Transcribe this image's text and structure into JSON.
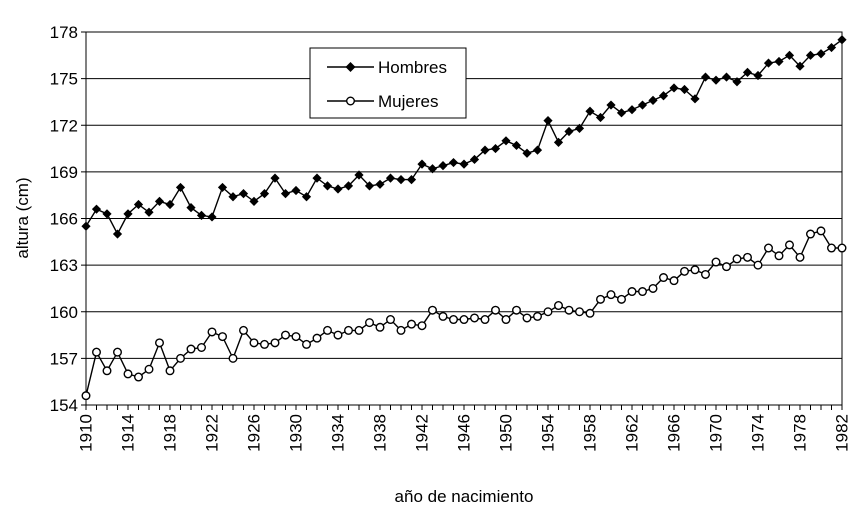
{
  "chart_data": {
    "type": "line",
    "xlabel": "año de nacimiento",
    "ylabel": "altura (cm)",
    "xlim": [
      1910,
      1982
    ],
    "ylim": [
      154,
      178
    ],
    "y_ticks": [
      154,
      157,
      160,
      163,
      166,
      169,
      172,
      175,
      178
    ],
    "x_ticks": [
      1910,
      1914,
      1918,
      1922,
      1926,
      1930,
      1934,
      1938,
      1942,
      1946,
      1950,
      1954,
      1958,
      1962,
      1966,
      1970,
      1974,
      1978,
      1982
    ],
    "grid": "horizontal",
    "legend_position": "top-left",
    "x": [
      1910,
      1911,
      1912,
      1913,
      1914,
      1915,
      1916,
      1917,
      1918,
      1919,
      1920,
      1921,
      1922,
      1923,
      1924,
      1925,
      1926,
      1927,
      1928,
      1929,
      1930,
      1931,
      1932,
      1933,
      1934,
      1935,
      1936,
      1937,
      1938,
      1939,
      1940,
      1941,
      1942,
      1943,
      1944,
      1945,
      1946,
      1947,
      1948,
      1949,
      1950,
      1951,
      1952,
      1953,
      1954,
      1955,
      1956,
      1957,
      1958,
      1959,
      1960,
      1961,
      1962,
      1963,
      1964,
      1965,
      1966,
      1967,
      1968,
      1969,
      1970,
      1971,
      1972,
      1973,
      1974,
      1975,
      1976,
      1977,
      1978,
      1979,
      1980,
      1981,
      1982
    ],
    "series": [
      {
        "name": "Hombres",
        "marker": "filled-diamond",
        "color": "#000000",
        "values": [
          165.5,
          166.6,
          166.3,
          165.0,
          166.3,
          166.9,
          166.4,
          167.1,
          166.9,
          168.0,
          166.7,
          166.2,
          166.1,
          168.0,
          167.4,
          167.6,
          167.1,
          167.6,
          168.6,
          167.6,
          167.8,
          167.4,
          168.6,
          168.1,
          167.9,
          168.1,
          168.8,
          168.1,
          168.2,
          168.6,
          168.5,
          168.5,
          169.5,
          169.2,
          169.4,
          169.6,
          169.5,
          169.8,
          170.4,
          170.5,
          171.0,
          170.7,
          170.2,
          170.4,
          172.3,
          170.9,
          171.6,
          171.8,
          172.9,
          172.5,
          173.3,
          172.8,
          173.0,
          173.3,
          173.6,
          173.9,
          174.4,
          174.3,
          173.7,
          175.1,
          174.9,
          175.1,
          174.8,
          175.4,
          175.2,
          176.0,
          176.1,
          176.5,
          175.8,
          176.5,
          176.6,
          177.0,
          177.5
        ]
      },
      {
        "name": "Mujeres",
        "marker": "open-circle",
        "color": "#000000",
        "values": [
          154.6,
          157.4,
          156.2,
          157.4,
          156.0,
          155.8,
          156.3,
          158.0,
          156.2,
          157.0,
          157.6,
          157.7,
          158.7,
          158.4,
          157.0,
          158.8,
          158.0,
          157.9,
          158.0,
          158.5,
          158.4,
          157.9,
          158.3,
          158.8,
          158.5,
          158.8,
          158.8,
          159.3,
          159.0,
          159.5,
          158.8,
          159.2,
          159.1,
          160.1,
          159.7,
          159.5,
          159.5,
          159.6,
          159.5,
          160.1,
          159.5,
          160.1,
          159.6,
          159.7,
          160.0,
          160.4,
          160.1,
          160.0,
          159.9,
          160.8,
          161.1,
          160.8,
          161.3,
          161.3,
          161.5,
          162.2,
          162.0,
          162.6,
          162.7,
          162.4,
          163.2,
          162.9,
          163.4,
          163.5,
          163.0,
          164.1,
          163.6,
          164.3,
          163.5,
          165.0,
          165.2,
          164.1,
          164.1
        ]
      }
    ]
  }
}
